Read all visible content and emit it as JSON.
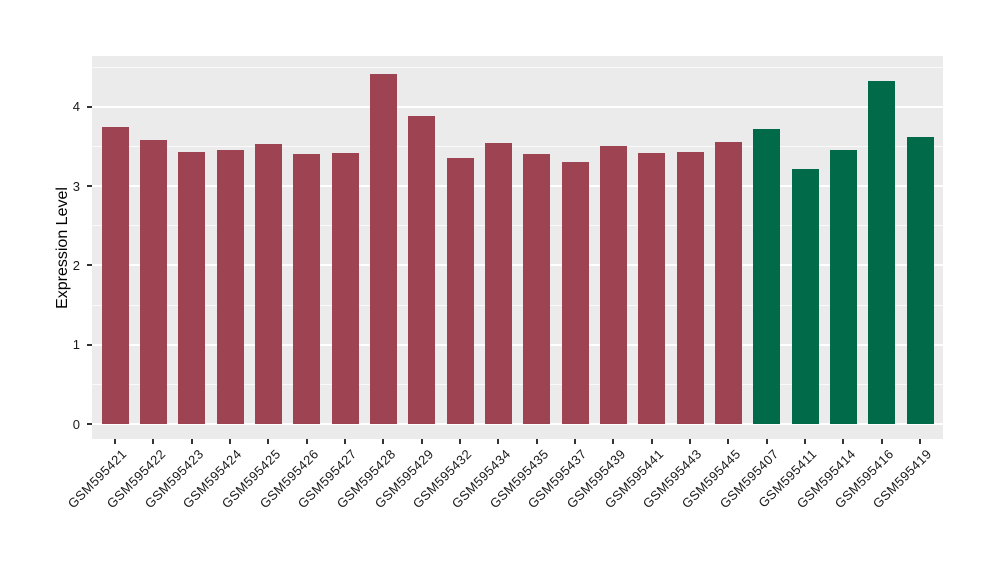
{
  "chart_data": {
    "type": "bar",
    "title": "",
    "xlabel": "",
    "ylabel": "Expression Level",
    "ylim": [
      0,
      4.64
    ],
    "yticks": [
      0,
      1,
      2,
      3,
      4
    ],
    "minor_gridlines": [
      0.5,
      1.5,
      2.5,
      3.5,
      4.5
    ],
    "grid": true,
    "legend": false,
    "panel_background": "#EBEBEB",
    "gridline_color": "#FFFFFF",
    "categories": [
      "GSM595421",
      "GSM595422",
      "GSM595423",
      "GSM595424",
      "GSM595425",
      "GSM595426",
      "GSM595427",
      "GSM595428",
      "GSM595429",
      "GSM595432",
      "GSM595434",
      "GSM595435",
      "GSM595437",
      "GSM595439",
      "GSM595441",
      "GSM595443",
      "GSM595445",
      "GSM595407",
      "GSM595411",
      "GSM595414",
      "GSM595416",
      "GSM595419"
    ],
    "values": [
      3.74,
      3.58,
      3.43,
      3.46,
      3.53,
      3.4,
      3.42,
      4.41,
      3.88,
      3.35,
      3.54,
      3.41,
      3.31,
      3.51,
      3.42,
      3.43,
      3.55,
      3.72,
      3.22,
      3.45,
      4.33,
      3.62
    ],
    "groups": [
      "group1",
      "group1",
      "group1",
      "group1",
      "group1",
      "group1",
      "group1",
      "group1",
      "group1",
      "group1",
      "group1",
      "group1",
      "group1",
      "group1",
      "group1",
      "group1",
      "group1",
      "group2",
      "group2",
      "group2",
      "group2",
      "group2"
    ],
    "group_colors": {
      "group1": "#9E4352",
      "group2": "#016A49"
    }
  }
}
